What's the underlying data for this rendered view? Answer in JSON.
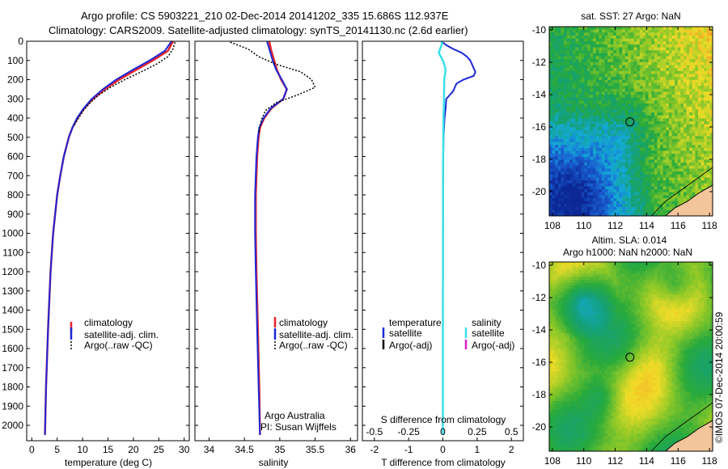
{
  "title": {
    "line1": "Argo profile: CS 5903221_210 02-Dec-2014 20141202_335 15.686S 112.937E",
    "line2": "Climatology: CARS2009. Satellite-adjusted climatology: synTS_20141130.nc (2.6d earlier)"
  },
  "credit": "©IMOS 07-Dec-2014 20:00:59",
  "colors": {
    "climatology": "#e8242a",
    "satellite": "#1c28d8",
    "argo": "#000000",
    "satellite_s": "#39e0e8",
    "argo_s": "#d81ecf"
  },
  "chart_data": [
    {
      "id": "temperature",
      "type": "line",
      "xlabel": "temperature (deg C)",
      "ylabel": "",
      "xlim": [
        -1,
        31
      ],
      "ylim": [
        2080,
        0
      ],
      "xticks": [
        0,
        5,
        10,
        15,
        20,
        25,
        30
      ],
      "yticks": [
        0,
        100,
        200,
        300,
        400,
        500,
        600,
        700,
        800,
        900,
        1000,
        1100,
        1200,
        1300,
        1400,
        1500,
        1600,
        1700,
        1800,
        1900,
        2000
      ],
      "legend": [
        "climatology",
        "satellite-adj. clim.",
        "Argo(..raw -QC)"
      ],
      "series": [
        {
          "name": "climatology",
          "depth": [
            0,
            50,
            100,
            150,
            200,
            250,
            300,
            350,
            400,
            450,
            500,
            600,
            700,
            800,
            1000,
            1200,
            1500,
            1800,
            2050
          ],
          "values": [
            27.8,
            26.8,
            23.8,
            20.5,
            17.2,
            14.4,
            12.0,
            10.3,
            9.0,
            8.0,
            7.3,
            6.3,
            5.6,
            5.0,
            4.2,
            3.7,
            3.2,
            2.8,
            2.6
          ]
        },
        {
          "name": "satellite-adj. clim.",
          "depth": [
            0,
            50,
            100,
            150,
            200,
            250,
            300,
            350,
            400,
            450,
            500,
            600,
            700,
            800,
            1000,
            1200,
            1500,
            1800,
            2050
          ],
          "values": [
            27.5,
            26.2,
            23.2,
            19.8,
            16.6,
            14.0,
            11.8,
            10.2,
            8.9,
            8.0,
            7.3,
            6.3,
            5.6,
            5.0,
            4.2,
            3.7,
            3.2,
            2.8,
            2.6
          ]
        },
        {
          "name": "Argo(..raw -QC)",
          "depth": [
            5,
            40,
            80,
            120,
            160,
            200,
            240,
            280,
            320,
            360,
            400,
            440
          ],
          "values": [
            28.2,
            27.8,
            26.8,
            24.5,
            21.5,
            18.3,
            15.5,
            13.2,
            11.5,
            10.2,
            9.2,
            8.3
          ]
        }
      ]
    },
    {
      "id": "salinity",
      "type": "line",
      "xlabel": "salinity",
      "xlim": [
        33.8,
        36.1
      ],
      "ylim": [
        2080,
        0
      ],
      "xticks": [
        34,
        34.5,
        35,
        35.5,
        36
      ],
      "legend": [
        "climatology",
        "satellite-adj. clim.",
        "Argo(..raw -QC)"
      ],
      "annotation": [
        "Argo Australia",
        "PI: Susan Wijffels"
      ],
      "series": [
        {
          "name": "climatology",
          "depth": [
            0,
            50,
            100,
            150,
            200,
            250,
            300,
            350,
            400,
            450,
            500,
            600,
            800,
            1000,
            1200,
            1500,
            1800,
            2050
          ],
          "values": [
            34.85,
            34.88,
            34.92,
            34.96,
            35.02,
            35.1,
            35.05,
            34.88,
            34.78,
            34.72,
            34.7,
            34.68,
            34.66,
            34.66,
            34.67,
            34.69,
            34.71,
            34.72
          ]
        },
        {
          "name": "satellite-adj. clim.",
          "depth": [
            0,
            50,
            100,
            150,
            200,
            250,
            300,
            350,
            400,
            450,
            500,
            600,
            800,
            1000,
            1200,
            1500,
            1800,
            2050
          ],
          "values": [
            34.82,
            34.86,
            34.9,
            34.95,
            35.03,
            35.1,
            35.05,
            34.87,
            34.77,
            34.71,
            34.69,
            34.67,
            34.65,
            34.65,
            34.66,
            34.68,
            34.7,
            34.72
          ]
        },
        {
          "name": "Argo(..raw -QC)",
          "depth": [
            5,
            40,
            80,
            120,
            160,
            200,
            240,
            280,
            320,
            360,
            400,
            440,
            480
          ],
          "values": [
            34.3,
            34.55,
            34.7,
            34.95,
            35.3,
            35.45,
            35.5,
            35.25,
            34.95,
            34.8,
            34.75,
            34.72,
            34.7
          ]
        }
      ]
    },
    {
      "id": "difference",
      "type": "line",
      "xlabel": "T difference from climatology",
      "xlabel_top": "S difference from climatology",
      "xlim": [
        -2.35,
        2.35
      ],
      "ylim": [
        2080,
        0
      ],
      "xticks_bottom": [
        "-2",
        "-1",
        "0",
        "1",
        "2"
      ],
      "xticks_bottom_values": [
        -2,
        -1,
        0,
        1,
        2
      ],
      "xticks_top": [
        "-0.5",
        "-0.25",
        "0",
        "0.25",
        "0.5"
      ],
      "xticks_top_values": [
        -0.5,
        -0.25,
        0,
        0.25,
        0.5
      ],
      "legend_headers": [
        "temperature",
        "salinity"
      ],
      "legend_temperature": [
        "satellite",
        "Argo(-adj)"
      ],
      "legend_salinity": [
        "satellite",
        "Argo(-adj)"
      ],
      "series": [
        {
          "name": "T satellite",
          "depth": [
            0,
            20,
            40,
            60,
            80,
            100,
            120,
            140,
            160,
            180,
            200,
            220,
            240,
            260,
            280,
            300,
            350,
            400,
            500,
            600,
            800,
            1000,
            1500,
            2050
          ],
          "values": [
            -0.05,
            0.1,
            0.3,
            0.55,
            0.7,
            0.8,
            0.85,
            0.9,
            0.95,
            0.9,
            0.6,
            0.4,
            0.35,
            0.3,
            0.2,
            0.1,
            0.08,
            0.05,
            0.02,
            0.01,
            0,
            0,
            0,
            0
          ]
        },
        {
          "name": "S satellite",
          "depth": [
            0,
            20,
            40,
            60,
            80,
            100,
            120,
            150,
            200,
            300,
            400,
            500,
            700,
            1000,
            1500,
            2050
          ],
          "values": [
            -0.005,
            -0.01,
            -0.02,
            -0.03,
            -0.015,
            0.0,
            0.01,
            0.02,
            0.01,
            0.008,
            0.005,
            0.003,
            0.002,
            0.001,
            0.0,
            0.0
          ]
        }
      ]
    },
    {
      "id": "sst-map",
      "type": "heatmap",
      "title": "sat. SST: 27 Argo: NaN",
      "xlim": [
        107.8,
        118.2
      ],
      "ylim": [
        -21.5,
        -9.8
      ],
      "xticks": [
        108,
        110,
        112,
        114,
        116,
        118
      ],
      "yticks": [
        -10,
        -12,
        -14,
        -16,
        -18,
        -20
      ],
      "marker": {
        "lon": 112.937,
        "lat": -15.686
      }
    },
    {
      "id": "sla-map",
      "type": "heatmap",
      "title_lines": [
        "Altim. SLA: 0.014",
        "Argo h1000: NaN h2000: NaN"
      ],
      "xlim": [
        107.8,
        118.2
      ],
      "ylim": [
        -21.5,
        -9.8
      ],
      "xticks": [
        108,
        110,
        112,
        114,
        116,
        118
      ],
      "yticks": [
        -10,
        -12,
        -14,
        -16,
        -18,
        -20
      ],
      "marker": {
        "lon": 112.937,
        "lat": -15.686
      }
    }
  ]
}
